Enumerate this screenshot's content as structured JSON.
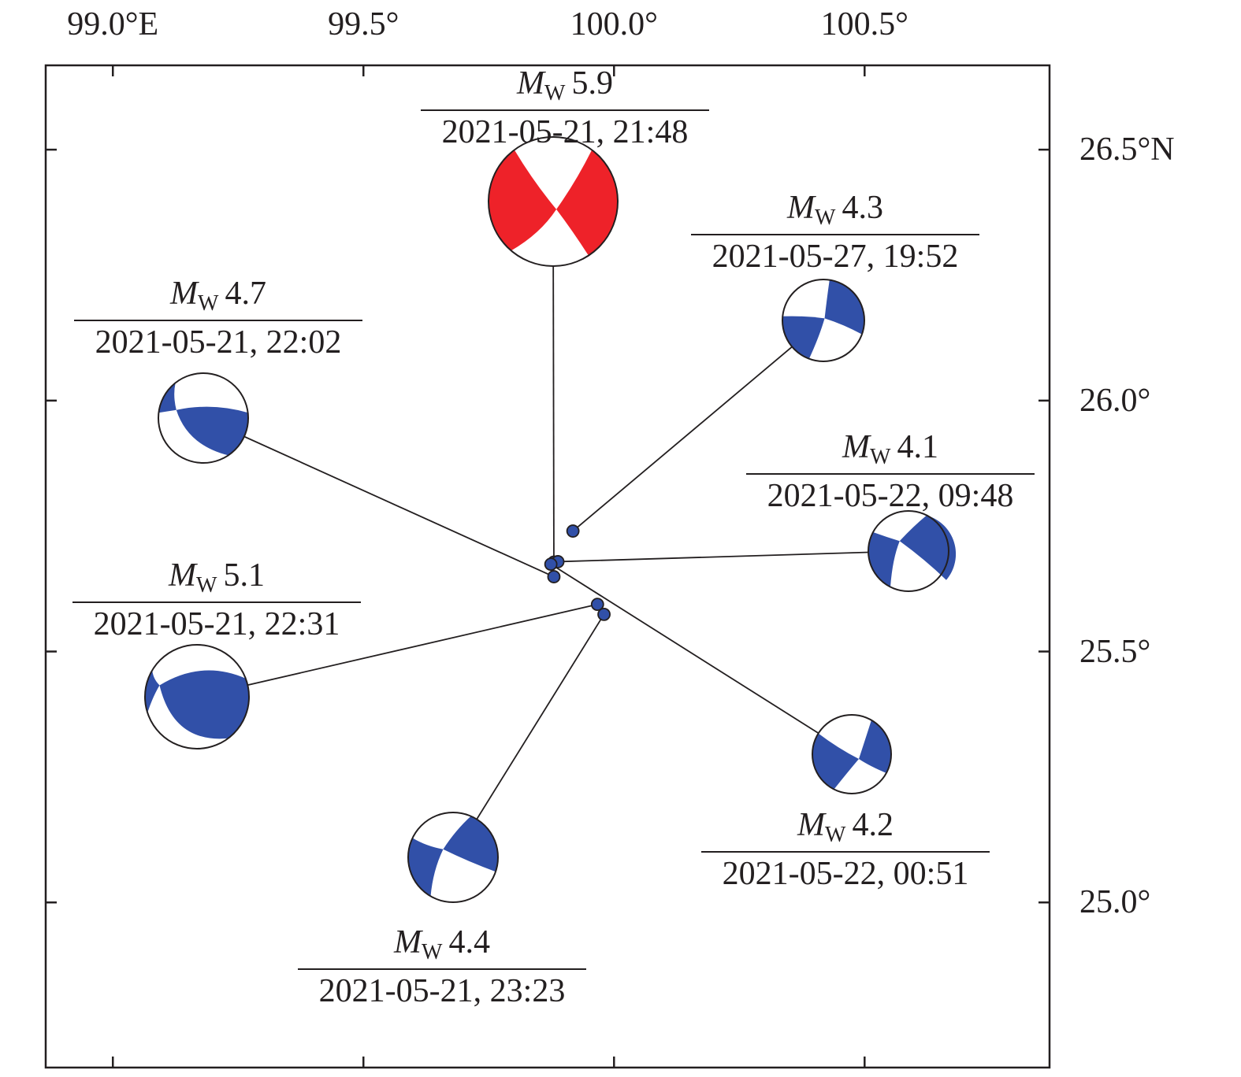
{
  "map": {
    "lon_ticks": [
      {
        "value": 99.0,
        "label": "99.0°E"
      },
      {
        "value": 99.5,
        "label": "99.5°"
      },
      {
        "value": 100.0,
        "label": "100.0°"
      },
      {
        "value": 100.5,
        "label": "100.5°"
      }
    ],
    "lat_ticks": [
      {
        "value": 26.5,
        "label": "26.5°N"
      },
      {
        "value": 26.0,
        "label": "26.0°"
      },
      {
        "value": 25.5,
        "label": "25.5°"
      },
      {
        "value": 25.0,
        "label": "25.0°"
      }
    ],
    "lon_range": [
      98.866,
      100.869
    ],
    "lat_range": [
      24.671,
      26.668
    ],
    "magnitude_symbol": "M",
    "magnitude_subscript": "W",
    "colors": {
      "mainshock": "#ee2229",
      "aftershock": "#3150a8",
      "outline": "#231f20"
    },
    "events": [
      {
        "id": "e59",
        "magnitude": "5.9",
        "datetime": "2021-05-21, 21:48",
        "lon": 99.88,
        "lat": 25.678,
        "type": "mainshock"
      },
      {
        "id": "e43",
        "magnitude": "4.3",
        "datetime": "2021-05-27, 19:52",
        "lon": 99.918,
        "lat": 25.74,
        "type": "aftershock"
      },
      {
        "id": "e47",
        "magnitude": "4.7",
        "datetime": "2021-05-21, 22:02",
        "lon": 99.88,
        "lat": 25.649,
        "type": "aftershock"
      },
      {
        "id": "e41",
        "magnitude": "4.1",
        "datetime": "2021-05-22, 09:48",
        "lon": 99.888,
        "lat": 25.679,
        "type": "aftershock"
      },
      {
        "id": "e51",
        "magnitude": "5.1",
        "datetime": "2021-05-21, 22:31",
        "lon": 99.967,
        "lat": 25.594,
        "type": "aftershock"
      },
      {
        "id": "e42",
        "magnitude": "4.2",
        "datetime": "2021-05-22, 00:51",
        "lon": 99.874,
        "lat": 25.674,
        "type": "aftershock"
      },
      {
        "id": "e44",
        "magnitude": "4.4",
        "datetime": "2021-05-21, 23:23",
        "lon": 99.98,
        "lat": 25.574,
        "type": "aftershock"
      }
    ]
  }
}
